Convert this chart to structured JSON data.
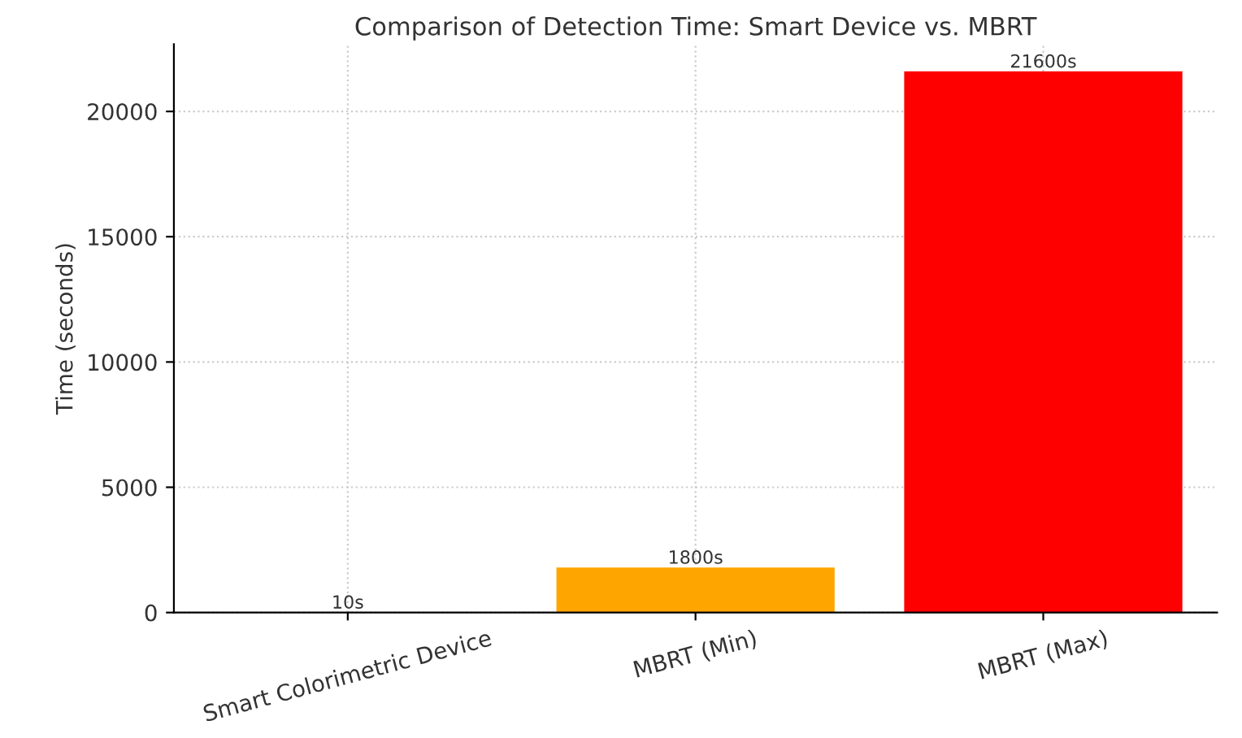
{
  "chart_data": {
    "type": "bar",
    "title": "Comparison of Detection Time: Smart Device vs. MBRT",
    "ylabel": "Time (seconds)",
    "categories": [
      "Smart Colorimetric Device",
      "MBRT (Min)",
      "MBRT (Max)"
    ],
    "values": [
      10,
      1800,
      21600
    ],
    "colors": [
      "#0000ff",
      "#ffa500",
      "#ff0000"
    ],
    "value_labels": [
      "10s",
      "1800s",
      "21600s"
    ],
    "ylim": [
      0,
      22680
    ],
    "yticks": [
      0,
      5000,
      10000,
      15000,
      20000
    ],
    "grid": true
  }
}
